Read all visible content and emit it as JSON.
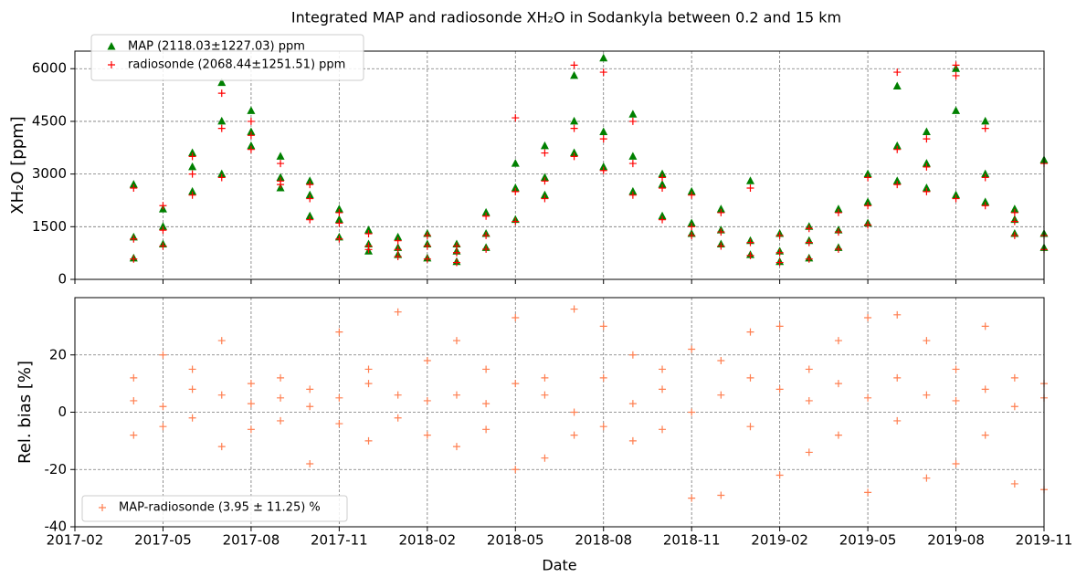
{
  "chart_data": [
    {
      "type": "scatter",
      "title": "Integrated MAP and radiosonde XH₂O in Sodankyla between 0.2 and 15 km",
      "ylabel": "XH₂O [ppm]",
      "x": [
        "2017-04",
        "2017-04",
        "2017-04",
        "2017-05",
        "2017-05",
        "2017-05",
        "2017-06",
        "2017-06",
        "2017-06",
        "2017-07",
        "2017-07",
        "2017-07",
        "2017-08",
        "2017-08",
        "2017-08",
        "2017-09",
        "2017-09",
        "2017-09",
        "2017-10",
        "2017-10",
        "2017-10",
        "2017-11",
        "2017-11",
        "2017-11",
        "2017-12",
        "2017-12",
        "2017-12",
        "2018-01",
        "2018-01",
        "2018-01",
        "2018-02",
        "2018-02",
        "2018-02",
        "2018-03",
        "2018-03",
        "2018-03",
        "2018-04",
        "2018-04",
        "2018-04",
        "2018-05",
        "2018-05",
        "2018-05",
        "2018-06",
        "2018-06",
        "2018-06",
        "2018-07",
        "2018-07",
        "2018-07",
        "2018-08",
        "2018-08",
        "2018-08",
        "2018-09",
        "2018-09",
        "2018-09",
        "2018-10",
        "2018-10",
        "2018-10",
        "2018-11",
        "2018-11",
        "2018-11",
        "2018-12",
        "2018-12",
        "2018-12",
        "2019-01",
        "2019-01",
        "2019-01",
        "2019-02",
        "2019-02",
        "2019-02",
        "2019-03",
        "2019-03",
        "2019-03",
        "2019-04",
        "2019-04",
        "2019-04",
        "2019-05",
        "2019-05",
        "2019-05",
        "2019-06",
        "2019-06",
        "2019-06",
        "2019-07",
        "2019-07",
        "2019-07",
        "2019-08",
        "2019-08",
        "2019-08",
        "2019-09",
        "2019-09",
        "2019-09",
        "2019-10",
        "2019-10",
        "2019-10",
        "2019-11",
        "2019-11",
        "2019-11"
      ],
      "series": [
        {
          "name": "MAP (2118.03±1227.03) ppm",
          "color": "#008000",
          "marker": "triangle",
          "values": [
            600,
            1200,
            2700,
            1000,
            2000,
            1500,
            2500,
            3200,
            3600,
            3000,
            4500,
            5600,
            4800,
            3800,
            4200,
            3500,
            2600,
            2900,
            2400,
            1800,
            2800,
            1700,
            1200,
            2000,
            1000,
            1400,
            800,
            900,
            1200,
            700,
            600,
            1000,
            1300,
            500,
            800,
            1000,
            900,
            1300,
            1900,
            1700,
            2600,
            3300,
            2400,
            3800,
            2900,
            4500,
            5800,
            3600,
            6300,
            4200,
            3200,
            3500,
            2500,
            4700,
            1800,
            2700,
            3000,
            2500,
            1600,
            1300,
            1000,
            1400,
            2000,
            700,
            1100,
            2800,
            500,
            1300,
            800,
            600,
            1500,
            1100,
            900,
            1400,
            2000,
            1600,
            3000,
            2200,
            2800,
            5500,
            3800,
            4200,
            2600,
            3300,
            6000,
            2400,
            4800,
            3000,
            4500,
            2200,
            1300,
            2000,
            1700,
            900,
            3400,
            1300
          ]
        },
        {
          "name": "radiosonde (2068.44±1251.51) ppm",
          "color": "#ff0000",
          "marker": "plus",
          "values": [
            580,
            1150,
            2600,
            950,
            2100,
            1400,
            2400,
            3000,
            3500,
            2900,
            4300,
            5300,
            4500,
            3700,
            4100,
            3300,
            2700,
            2800,
            2300,
            1700,
            2700,
            1600,
            1150,
            1900,
            950,
            1300,
            850,
            850,
            1100,
            650,
            580,
            950,
            1250,
            480,
            760,
            950,
            860,
            1250,
            1800,
            1650,
            2500,
            4600,
            2300,
            3600,
            2800,
            4300,
            6100,
            3500,
            5900,
            4000,
            3100,
            3300,
            2400,
            4500,
            1700,
            2600,
            2900,
            2400,
            1500,
            1250,
            950,
            1350,
            1900,
            680,
            1050,
            2600,
            480,
            1250,
            760,
            580,
            1450,
            1050,
            860,
            1350,
            1900,
            1550,
            2900,
            2100,
            2700,
            5900,
            3700,
            4000,
            2500,
            3200,
            5800,
            2300,
            6100,
            2900,
            4300,
            2100,
            1250,
            1900,
            1650,
            850,
            3300,
            1250
          ]
        }
      ],
      "xlim": [
        "2017-02",
        "2019-11"
      ],
      "ylim": [
        0,
        6500
      ],
      "yticks": [
        0,
        1500,
        3000,
        4500,
        6000
      ],
      "grid": true,
      "legend": "upper left"
    },
    {
      "type": "scatter",
      "ylabel": "Rel. bias [%]",
      "xlabel": "Date",
      "x": [
        "2017-04",
        "2017-04",
        "2017-04",
        "2017-05",
        "2017-05",
        "2017-05",
        "2017-06",
        "2017-06",
        "2017-06",
        "2017-07",
        "2017-07",
        "2017-07",
        "2017-08",
        "2017-08",
        "2017-08",
        "2017-09",
        "2017-09",
        "2017-09",
        "2017-10",
        "2017-10",
        "2017-10",
        "2017-11",
        "2017-11",
        "2017-11",
        "2017-12",
        "2017-12",
        "2017-12",
        "2018-01",
        "2018-01",
        "2018-01",
        "2018-02",
        "2018-02",
        "2018-02",
        "2018-03",
        "2018-03",
        "2018-03",
        "2018-04",
        "2018-04",
        "2018-04",
        "2018-05",
        "2018-05",
        "2018-05",
        "2018-06",
        "2018-06",
        "2018-06",
        "2018-07",
        "2018-07",
        "2018-07",
        "2018-08",
        "2018-08",
        "2018-08",
        "2018-09",
        "2018-09",
        "2018-09",
        "2018-10",
        "2018-10",
        "2018-10",
        "2018-11",
        "2018-11",
        "2018-11",
        "2018-12",
        "2018-12",
        "2018-12",
        "2019-01",
        "2019-01",
        "2019-01",
        "2019-02",
        "2019-02",
        "2019-02",
        "2019-03",
        "2019-03",
        "2019-03",
        "2019-04",
        "2019-04",
        "2019-04",
        "2019-05",
        "2019-05",
        "2019-05",
        "2019-06",
        "2019-06",
        "2019-06",
        "2019-07",
        "2019-07",
        "2019-07",
        "2019-08",
        "2019-08",
        "2019-08",
        "2019-09",
        "2019-09",
        "2019-09",
        "2019-10",
        "2019-10",
        "2019-10",
        "2019-11",
        "2019-11",
        "2019-11"
      ],
      "series": [
        {
          "name": "MAP-radiosonde (3.95 ± 11.25) %",
          "color": "#ff7f50",
          "marker": "plus",
          "values": [
            4,
            -8,
            12,
            20,
            2,
            -5,
            8,
            15,
            -2,
            6,
            -12,
            25,
            3,
            10,
            -6,
            12,
            -3,
            5,
            -18,
            8,
            2,
            5,
            28,
            -4,
            10,
            15,
            -10,
            6,
            -2,
            35,
            18,
            -8,
            4,
            25,
            -12,
            6,
            3,
            15,
            -6,
            -20,
            10,
            33,
            6,
            -16,
            12,
            36,
            0,
            -8,
            30,
            -5,
            12,
            20,
            3,
            -10,
            -6,
            15,
            8,
            -30,
            0,
            22,
            -29,
            6,
            18,
            12,
            -5,
            28,
            -22,
            8,
            30,
            4,
            -14,
            15,
            10,
            -8,
            25,
            33,
            -28,
            5,
            34,
            -3,
            12,
            -23,
            6,
            25,
            -18,
            4,
            15,
            30,
            -8,
            8,
            -25,
            2,
            12,
            -27,
            5,
            10
          ]
        }
      ],
      "xlim": [
        "2017-02",
        "2019-11"
      ],
      "xticks": [
        "2017-02",
        "2017-05",
        "2017-08",
        "2017-11",
        "2018-02",
        "2018-05",
        "2018-08",
        "2018-11",
        "2019-02",
        "2019-05",
        "2019-08",
        "2019-11"
      ],
      "ylim": [
        -40,
        40
      ],
      "yticks": [
        -40,
        -20,
        0,
        20
      ],
      "grid": true,
      "legend": "lower left"
    }
  ]
}
